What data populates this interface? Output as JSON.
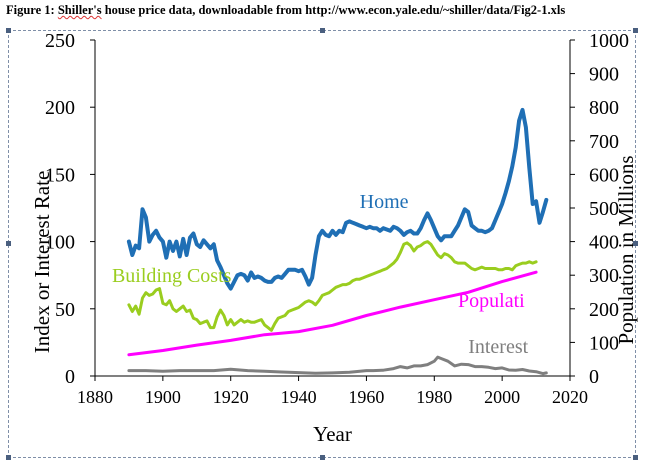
{
  "caption": {
    "prefix": "Figure 1: ",
    "misspelled": "Shiller's",
    "rest": " house price data, downloadable from http://www.econ.yale.edu/~shiller/data/Fig2-1.xls"
  },
  "chart_data": {
    "type": "line",
    "xlabel": "Year",
    "ylabel_left": "Index or Interest Rate",
    "ylabel_right": "Population in Millions",
    "xlim": [
      1880,
      2020
    ],
    "ylim_left": [
      0,
      250
    ],
    "ylim_right": [
      0,
      1000
    ],
    "x_ticks": [
      "1880",
      "1900",
      "1920",
      "1940",
      "1960",
      "1980",
      "2000",
      "2020"
    ],
    "y_ticks_left": [
      "0",
      "50",
      "100",
      "150",
      "200",
      "250"
    ],
    "y_ticks_right": [
      "0",
      "100",
      "200",
      "300",
      "400",
      "500",
      "600",
      "700",
      "800",
      "900",
      "1000"
    ],
    "grid": false,
    "series": [
      {
        "name": "Home",
        "color": "#1f6fb5",
        "axis": "left",
        "points": [
          [
            1890,
            100
          ],
          [
            1891,
            90
          ],
          [
            1892,
            97
          ],
          [
            1893,
            95
          ],
          [
            1894,
            124
          ],
          [
            1895,
            118
          ],
          [
            1896,
            100
          ],
          [
            1897,
            105
          ],
          [
            1898,
            108
          ],
          [
            1899,
            103
          ],
          [
            1900,
            100
          ],
          [
            1901,
            88
          ],
          [
            1902,
            100
          ],
          [
            1903,
            93
          ],
          [
            1904,
            100
          ],
          [
            1905,
            89
          ],
          [
            1906,
            102
          ],
          [
            1907,
            90
          ],
          [
            1908,
            103
          ],
          [
            1909,
            106
          ],
          [
            1910,
            98
          ],
          [
            1911,
            96
          ],
          [
            1912,
            101
          ],
          [
            1913,
            98
          ],
          [
            1914,
            95
          ],
          [
            1915,
            98
          ],
          [
            1916,
            86
          ],
          [
            1917,
            81
          ],
          [
            1918,
            75
          ],
          [
            1919,
            69
          ],
          [
            1920,
            65
          ],
          [
            1921,
            70
          ],
          [
            1922,
            75
          ],
          [
            1923,
            76
          ],
          [
            1924,
            75
          ],
          [
            1925,
            71
          ],
          [
            1926,
            77
          ],
          [
            1927,
            73
          ],
          [
            1928,
            74
          ],
          [
            1929,
            73
          ],
          [
            1930,
            71
          ],
          [
            1931,
            70
          ],
          [
            1932,
            70
          ],
          [
            1933,
            73
          ],
          [
            1934,
            74
          ],
          [
            1935,
            73
          ],
          [
            1936,
            76
          ],
          [
            1937,
            79
          ],
          [
            1938,
            79
          ],
          [
            1939,
            79
          ],
          [
            1940,
            78
          ],
          [
            1941,
            79
          ],
          [
            1942,
            74
          ],
          [
            1943,
            68
          ],
          [
            1944,
            73
          ],
          [
            1945,
            90
          ],
          [
            1946,
            104
          ],
          [
            1947,
            108
          ],
          [
            1948,
            105
          ],
          [
            1949,
            104
          ],
          [
            1950,
            108
          ],
          [
            1951,
            105
          ],
          [
            1952,
            108
          ],
          [
            1953,
            107
          ],
          [
            1954,
            114
          ],
          [
            1955,
            115
          ],
          [
            1956,
            114
          ],
          [
            1957,
            113
          ],
          [
            1958,
            112
          ],
          [
            1959,
            111
          ],
          [
            1960,
            110
          ],
          [
            1961,
            111
          ],
          [
            1962,
            110
          ],
          [
            1963,
            110
          ],
          [
            1964,
            108
          ],
          [
            1965,
            110
          ],
          [
            1966,
            109
          ],
          [
            1967,
            108
          ],
          [
            1968,
            111
          ],
          [
            1969,
            110
          ],
          [
            1970,
            108
          ],
          [
            1971,
            105
          ],
          [
            1972,
            107
          ],
          [
            1973,
            108
          ],
          [
            1974,
            106
          ],
          [
            1975,
            106
          ],
          [
            1976,
            110
          ],
          [
            1977,
            116
          ],
          [
            1978,
            121
          ],
          [
            1979,
            116
          ],
          [
            1980,
            110
          ],
          [
            1981,
            104
          ],
          [
            1982,
            101
          ],
          [
            1983,
            104
          ],
          [
            1984,
            104
          ],
          [
            1985,
            104
          ],
          [
            1986,
            108
          ],
          [
            1987,
            112
          ],
          [
            1988,
            118
          ],
          [
            1989,
            124
          ],
          [
            1990,
            122
          ],
          [
            1991,
            112
          ],
          [
            1992,
            110
          ],
          [
            1993,
            108
          ],
          [
            1994,
            108
          ],
          [
            1995,
            107
          ],
          [
            1996,
            108
          ],
          [
            1997,
            110
          ],
          [
            1998,
            116
          ],
          [
            1999,
            122
          ],
          [
            2000,
            128
          ],
          [
            2001,
            136
          ],
          [
            2002,
            145
          ],
          [
            2003,
            156
          ],
          [
            2004,
            170
          ],
          [
            2005,
            190
          ],
          [
            2006,
            198
          ],
          [
            2007,
            185
          ],
          [
            2008,
            155
          ],
          [
            2009,
            128
          ],
          [
            2010,
            130
          ],
          [
            2011,
            114
          ],
          [
            2012,
            122
          ],
          [
            2013,
            131
          ]
        ]
      },
      {
        "name": "Building Costs",
        "color": "#9acd1f",
        "axis": "left",
        "points": [
          [
            1890,
            53
          ],
          [
            1891,
            48
          ],
          [
            1892,
            52
          ],
          [
            1893,
            46
          ],
          [
            1894,
            58
          ],
          [
            1895,
            62
          ],
          [
            1896,
            60
          ],
          [
            1897,
            61
          ],
          [
            1898,
            64
          ],
          [
            1899,
            65
          ],
          [
            1900,
            54
          ],
          [
            1901,
            53
          ],
          [
            1902,
            56
          ],
          [
            1903,
            50
          ],
          [
            1904,
            48
          ],
          [
            1905,
            50
          ],
          [
            1906,
            52
          ],
          [
            1907,
            48
          ],
          [
            1908,
            49
          ],
          [
            1909,
            43
          ],
          [
            1910,
            42
          ],
          [
            1911,
            39
          ],
          [
            1912,
            40
          ],
          [
            1913,
            41
          ],
          [
            1914,
            36
          ],
          [
            1915,
            36
          ],
          [
            1916,
            44
          ],
          [
            1917,
            49
          ],
          [
            1918,
            45
          ],
          [
            1919,
            38
          ],
          [
            1920,
            42
          ],
          [
            1921,
            38
          ],
          [
            1922,
            40
          ],
          [
            1923,
            42
          ],
          [
            1924,
            40
          ],
          [
            1925,
            41
          ],
          [
            1926,
            40
          ],
          [
            1927,
            40
          ],
          [
            1928,
            41
          ],
          [
            1929,
            42
          ],
          [
            1930,
            38
          ],
          [
            1931,
            36
          ],
          [
            1932,
            34
          ],
          [
            1933,
            39
          ],
          [
            1934,
            43
          ],
          [
            1935,
            44
          ],
          [
            1936,
            45
          ],
          [
            1937,
            48
          ],
          [
            1938,
            49
          ],
          [
            1939,
            50
          ],
          [
            1940,
            51
          ],
          [
            1941,
            53
          ],
          [
            1942,
            55
          ],
          [
            1943,
            56
          ],
          [
            1944,
            55
          ],
          [
            1945,
            53
          ],
          [
            1946,
            56
          ],
          [
            1947,
            60
          ],
          [
            1948,
            61
          ],
          [
            1949,
            62
          ],
          [
            1950,
            64
          ],
          [
            1951,
            66
          ],
          [
            1952,
            67
          ],
          [
            1953,
            68
          ],
          [
            1954,
            68
          ],
          [
            1955,
            69
          ],
          [
            1956,
            71
          ],
          [
            1957,
            72
          ],
          [
            1958,
            72
          ],
          [
            1959,
            73
          ],
          [
            1960,
            74
          ],
          [
            1961,
            75
          ],
          [
            1962,
            76
          ],
          [
            1963,
            77
          ],
          [
            1964,
            78
          ],
          [
            1965,
            79
          ],
          [
            1966,
            80
          ],
          [
            1967,
            82
          ],
          [
            1968,
            84
          ],
          [
            1969,
            87
          ],
          [
            1970,
            92
          ],
          [
            1971,
            98
          ],
          [
            1972,
            99
          ],
          [
            1973,
            97
          ],
          [
            1974,
            93
          ],
          [
            1975,
            96
          ],
          [
            1976,
            97
          ],
          [
            1977,
            99
          ],
          [
            1978,
            100
          ],
          [
            1979,
            98
          ],
          [
            1980,
            94
          ],
          [
            1981,
            90
          ],
          [
            1982,
            88
          ],
          [
            1983,
            91
          ],
          [
            1984,
            90
          ],
          [
            1985,
            88
          ],
          [
            1986,
            85
          ],
          [
            1987,
            84
          ],
          [
            1988,
            84
          ],
          [
            1989,
            84
          ],
          [
            1990,
            82
          ],
          [
            1991,
            80
          ],
          [
            1992,
            79
          ],
          [
            1993,
            80
          ],
          [
            1994,
            81
          ],
          [
            1995,
            80
          ],
          [
            1996,
            80
          ],
          [
            1997,
            80
          ],
          [
            1998,
            80
          ],
          [
            1999,
            79
          ],
          [
            2000,
            79
          ],
          [
            2001,
            80
          ],
          [
            2002,
            80
          ],
          [
            2003,
            79
          ],
          [
            2004,
            82
          ],
          [
            2005,
            83
          ],
          [
            2006,
            84
          ],
          [
            2007,
            84
          ],
          [
            2008,
            85
          ],
          [
            2009,
            84
          ],
          [
            2010,
            85
          ]
        ]
      },
      {
        "name": "Populati",
        "color": "#ff00ff",
        "axis": "right",
        "points": [
          [
            1890,
            63
          ],
          [
            1900,
            76
          ],
          [
            1910,
            92
          ],
          [
            1920,
            106
          ],
          [
            1930,
            123
          ],
          [
            1940,
            132
          ],
          [
            1950,
            151
          ],
          [
            1960,
            180
          ],
          [
            1970,
            205
          ],
          [
            1980,
            227
          ],
          [
            1990,
            249
          ],
          [
            2000,
            281
          ],
          [
            2010,
            309
          ]
        ]
      },
      {
        "name": "Interest",
        "color": "#7f7f7f",
        "axis": "left",
        "points": [
          [
            1890,
            4
          ],
          [
            1895,
            4
          ],
          [
            1900,
            3.5
          ],
          [
            1905,
            4
          ],
          [
            1910,
            4
          ],
          [
            1915,
            4
          ],
          [
            1920,
            5
          ],
          [
            1925,
            4
          ],
          [
            1930,
            3.5
          ],
          [
            1935,
            3
          ],
          [
            1940,
            2.5
          ],
          [
            1945,
            2
          ],
          [
            1950,
            2.3
          ],
          [
            1955,
            2.8
          ],
          [
            1960,
            4
          ],
          [
            1962,
            4
          ],
          [
            1965,
            4.3
          ],
          [
            1968,
            5.5
          ],
          [
            1970,
            7
          ],
          [
            1972,
            6
          ],
          [
            1974,
            7.5
          ],
          [
            1976,
            7.5
          ],
          [
            1978,
            8.5
          ],
          [
            1980,
            11
          ],
          [
            1981,
            14
          ],
          [
            1982,
            13
          ],
          [
            1984,
            11
          ],
          [
            1986,
            7.5
          ],
          [
            1988,
            8.8
          ],
          [
            1990,
            8.5
          ],
          [
            1992,
            7
          ],
          [
            1994,
            7
          ],
          [
            1996,
            6.5
          ],
          [
            1998,
            5.5
          ],
          [
            2000,
            6
          ],
          [
            2002,
            4.5
          ],
          [
            2004,
            4.3
          ],
          [
            2006,
            4.8
          ],
          [
            2008,
            3.7
          ],
          [
            2010,
            3.2
          ],
          [
            2012,
            1.8
          ],
          [
            2013,
            2.3
          ]
        ]
      }
    ]
  }
}
